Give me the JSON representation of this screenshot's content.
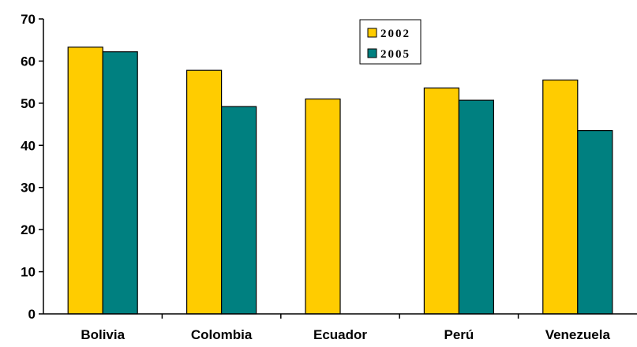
{
  "chart_data": {
    "type": "bar",
    "title": "",
    "xlabel": "",
    "ylabel": "",
    "categories": [
      "Bolivia",
      "Colombia",
      "Ecuador",
      "Perú",
      "Venezuela"
    ],
    "series": [
      {
        "name": "2002",
        "values": [
          63.3,
          57.8,
          51.0,
          53.6,
          55.5
        ],
        "color": "#FFCC00"
      },
      {
        "name": "2005",
        "values": [
          62.2,
          49.2,
          null,
          50.7,
          43.5
        ],
        "color": "#008080"
      }
    ],
    "ylim": [
      0,
      70
    ],
    "yticks": [
      "0",
      "10",
      "20",
      "30",
      "40",
      "50",
      "60",
      "70"
    ],
    "grid": false,
    "legend_position": "top-center"
  }
}
